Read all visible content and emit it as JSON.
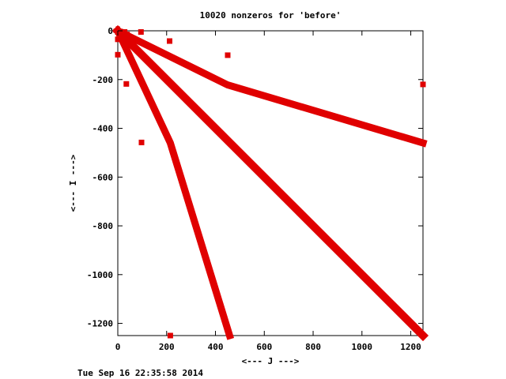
{
  "chart_data": {
    "type": "scatter",
    "title": "10020 nonzeros for 'before'",
    "xlabel": "<--- J --->",
    "ylabel": "<--- I --->",
    "xlim": [
      0,
      1250
    ],
    "ylim": [
      -1250,
      0
    ],
    "x_ticks": [
      "0",
      "200",
      "400",
      "600",
      "800",
      "1000",
      "1200"
    ],
    "y_ticks": [
      "0",
      "-200",
      "-400",
      "-600",
      "-800",
      "-1000",
      "-1200"
    ],
    "grid": false,
    "legend": "none",
    "marker_color": "#e00000",
    "bands": [
      {
        "points": [
          [
            0,
            0
          ],
          [
            450,
            -222
          ],
          [
            1250,
            -460
          ]
        ],
        "width": 9
      },
      {
        "points": [
          [
            0,
            0
          ],
          [
            1250,
            -1250
          ]
        ],
        "width": 10
      },
      {
        "points": [
          [
            0,
            0
          ],
          [
            215,
            -460
          ],
          [
            458,
            -1250
          ]
        ],
        "width": 9
      }
    ],
    "points": [
      [
        0,
        -5
      ],
      [
        10,
        -3
      ],
      [
        28,
        -5
      ],
      [
        95,
        -5
      ],
      [
        0,
        -35
      ],
      [
        25,
        -22
      ],
      [
        38,
        -15
      ],
      [
        0,
        -98
      ],
      [
        35,
        -218
      ],
      [
        212,
        -42
      ],
      [
        450,
        -100
      ],
      [
        97,
        -458
      ],
      [
        1250,
        -220
      ],
      [
        215,
        -1250
      ]
    ]
  },
  "footer": {
    "timestamp": "Tue Sep 16 22:35:58 2014"
  }
}
